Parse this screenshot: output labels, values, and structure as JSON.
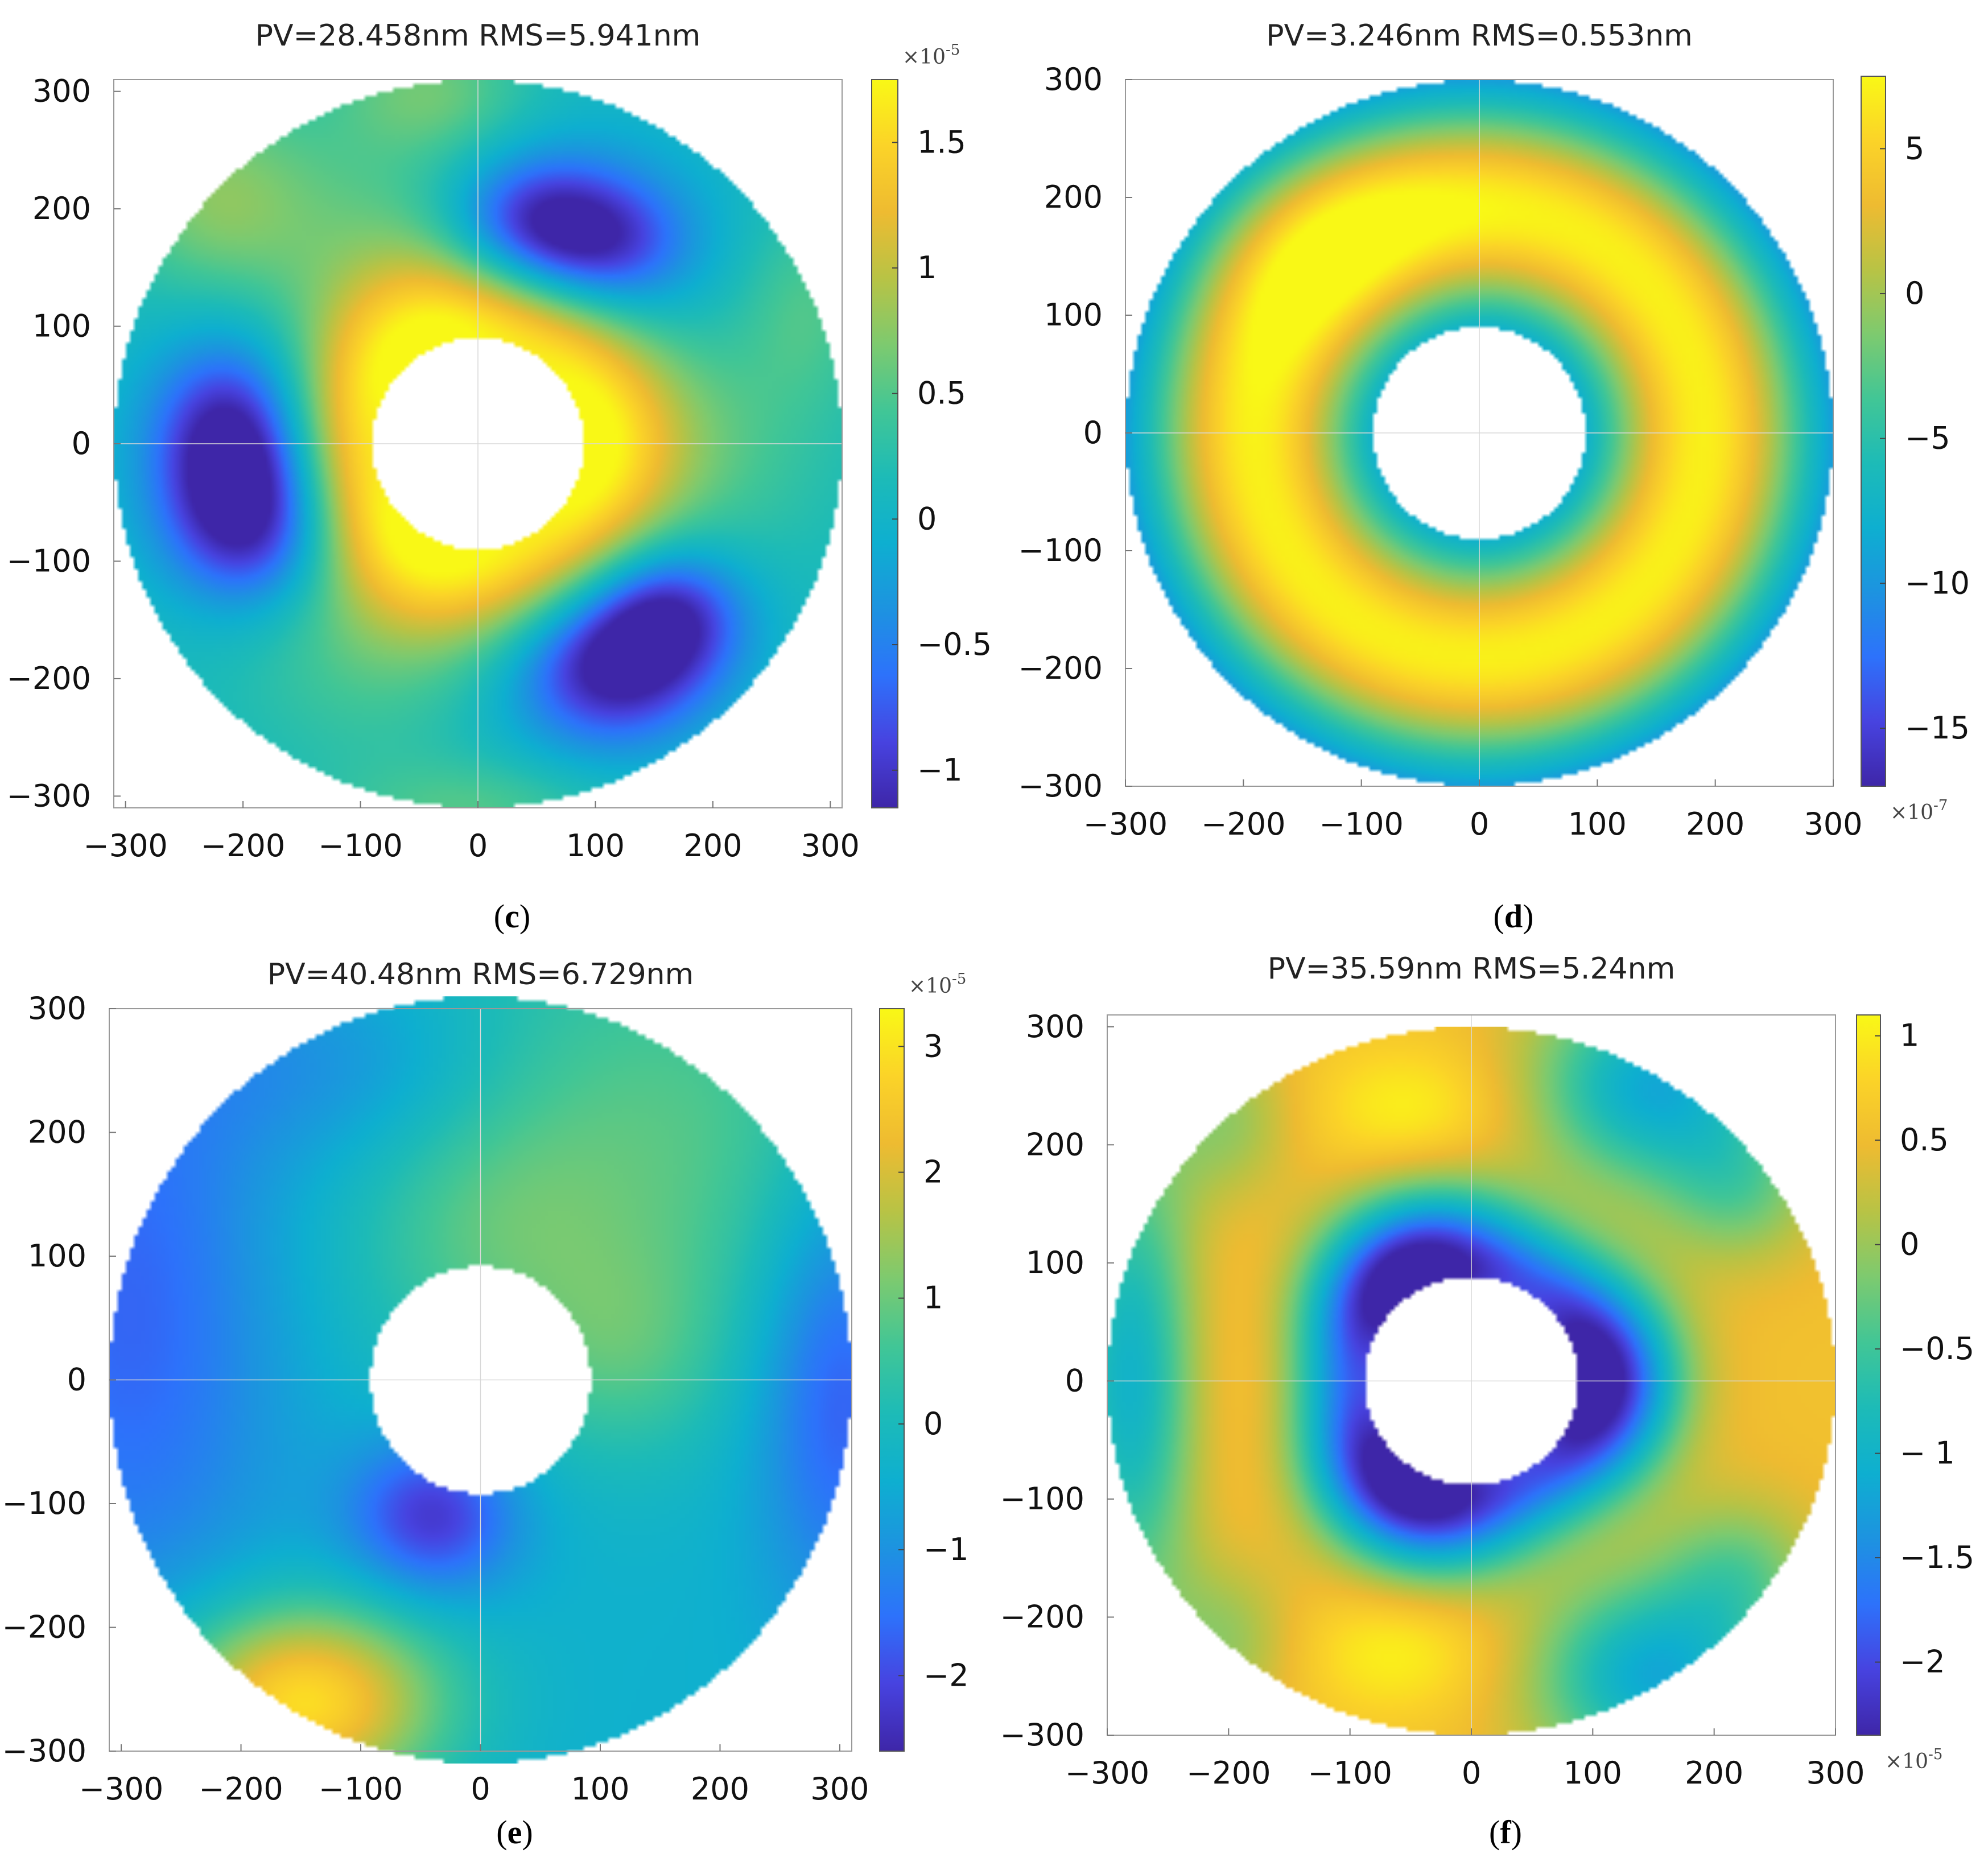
{
  "colors": {
    "parula": [
      "#3e26a8",
      "#4743e0",
      "#2d72fb",
      "#1d93e0",
      "#0eafd0",
      "#1dbbb7",
      "#41c696",
      "#7dca6f",
      "#b8c345",
      "#eebb31",
      "#fbd328",
      "#f9f816"
    ],
    "axis": "#999999",
    "grid": "#d8d8d8"
  },
  "chart_data": [
    {
      "id": "c",
      "panel_label": "(c)",
      "panel_label_letter": "c",
      "type": "heatmap",
      "title": "PV=28.458nm RMS=5.941nm",
      "xlim": [
        -310,
        310
      ],
      "ylim": [
        -310,
        310
      ],
      "xticks": [
        -300,
        -200,
        -100,
        0,
        100,
        200,
        300
      ],
      "yticks": [
        300,
        200,
        100,
        0,
        -100,
        -200,
        -300
      ],
      "xtick_labels": [
        "−300",
        "−200",
        "−100",
        "0",
        "100",
        "200",
        "300"
      ],
      "ytick_labels": [
        "300",
        "200",
        "100",
        "0",
        "−100",
        "−200",
        "−300"
      ],
      "aperture": {
        "outer_radius": 310,
        "inner_radius": 90
      },
      "colorbar": {
        "min": -1.15,
        "max": 1.75,
        "ticks": [
          1.5,
          1,
          0.5,
          0,
          -0.5,
          -1
        ],
        "tick_labels": [
          "1.5",
          "1",
          "0.5",
          "0",
          "−0.5",
          "−1"
        ],
        "multiplier": "×10",
        "exponent": "-5",
        "multiplier_position": "top"
      },
      "field": {
        "base": 0.1,
        "radial": [
          1.7,
          90,
          55
        ],
        "angular": [
          {
            "order": 3,
            "amp": -0.35,
            "phase": 60,
            "r0": 200,
            "sigma": 70
          }
        ],
        "blobs": [
          [
            45,
            185,
            -1.0,
            50,
            40
          ],
          [
            110,
            170,
            -0.75,
            50,
            40
          ],
          [
            -210,
            5,
            -1.05,
            45,
            55
          ],
          [
            -190,
            -70,
            -1.05,
            50,
            50
          ],
          [
            115,
            -190,
            -1.05,
            55,
            45
          ],
          [
            165,
            -145,
            -0.95,
            45,
            40
          ],
          [
            -225,
            210,
            0.6,
            60,
            60
          ],
          [
            -40,
            300,
            0.5,
            60,
            40
          ],
          [
            280,
            120,
            0.35,
            40,
            60
          ],
          [
            0,
            -310,
            0.4,
            80,
            30
          ]
        ]
      }
    },
    {
      "id": "d",
      "panel_label": "(d)",
      "panel_label_letter": "d",
      "type": "heatmap",
      "title": "PV=3.246nm RMS=0.553nm",
      "xlim": [
        -300,
        300
      ],
      "ylim": [
        -300,
        300
      ],
      "xticks": [
        -300,
        -200,
        -100,
        0,
        100,
        200,
        300
      ],
      "yticks": [
        300,
        200,
        100,
        0,
        -100,
        -200,
        -300
      ],
      "xtick_labels": [
        "−300",
        "−200",
        "−100",
        "0",
        "100",
        "200",
        "300"
      ],
      "ytick_labels": [
        "300",
        "200",
        "100",
        "0",
        "−100",
        "−200",
        "−300"
      ],
      "aperture": {
        "outer_radius": 300,
        "inner_radius": 90
      },
      "colorbar": {
        "min": -17,
        "max": 7.5,
        "ticks": [
          5,
          0,
          -5,
          -10,
          -15
        ],
        "tick_labels": [
          "5",
          "0",
          "−5",
          "−10",
          "−15"
        ],
        "multiplier": "×10",
        "exponent": "-7",
        "multiplier_position": "bottom"
      },
      "field": {
        "base": -17,
        "radial": [
          24,
          190,
          72
        ],
        "angular": [],
        "blobs": [
          [
            -150,
            170,
            3.5,
            80,
            70
          ]
        ]
      }
    },
    {
      "id": "e",
      "panel_label": "(e)",
      "panel_label_letter": "e",
      "type": "heatmap",
      "title": "PV=40.48nm RMS=6.729nm",
      "xlim": [
        -310,
        310
      ],
      "ylim": [
        -300,
        300
      ],
      "xticks": [
        -300,
        -200,
        -100,
        0,
        100,
        200,
        300
      ],
      "yticks": [
        300,
        200,
        100,
        0,
        -100,
        -200,
        -300
      ],
      "xtick_labels": [
        "−300",
        "−200",
        "−100",
        "0",
        "100",
        "200",
        "300"
      ],
      "ytick_labels": [
        "300",
        "200",
        "100",
        "0",
        "−100",
        "−200",
        "−300"
      ],
      "aperture": {
        "outer_radius": 310,
        "inner_radius": 92
      },
      "colorbar": {
        "min": -2.6,
        "max": 3.3,
        "ticks": [
          3,
          2,
          1,
          0,
          -1,
          -2
        ],
        "tick_labels": [
          "3",
          "2",
          "1",
          "0",
          "−1",
          "−2"
        ],
        "multiplier": "×10",
        "exponent": "-5",
        "multiplier_position": "top"
      },
      "field": {
        "base": -0.4,
        "radial": [
          0,
          100,
          50
        ],
        "angular": [],
        "blobs": [
          [
            130,
            200,
            1.2,
            170,
            140
          ],
          [
            10,
            110,
            0.6,
            80,
            80
          ],
          [
            120,
            20,
            0.7,
            60,
            60
          ],
          [
            -150,
            -260,
            3.4,
            80,
            55
          ],
          [
            -40,
            -110,
            -1.9,
            50,
            45
          ],
          [
            -290,
            60,
            -1.3,
            90,
            200
          ],
          [
            300,
            0,
            -1.5,
            50,
            130
          ],
          [
            -100,
            250,
            -0.8,
            100,
            60
          ]
        ]
      }
    },
    {
      "id": "f",
      "panel_label": "(f)",
      "panel_label_letter": "f",
      "type": "heatmap",
      "title": "PV=35.59nm RMS=5.24nm",
      "xlim": [
        -300,
        300
      ],
      "ylim": [
        -300,
        310
      ],
      "xticks": [
        -300,
        -200,
        -100,
        0,
        100,
        200,
        300
      ],
      "yticks": [
        300,
        200,
        100,
        0,
        -100,
        -200,
        -300
      ],
      "xtick_labels": [
        "−300",
        "−200",
        "−100",
        "0",
        "100",
        "200",
        "300"
      ],
      "ytick_labels": [
        "300",
        "200",
        "100",
        "0",
        "−100",
        "−200",
        "−300"
      ],
      "aperture": {
        "outer_radius": 300,
        "inner_radius": 88
      },
      "colorbar": {
        "min": -2.35,
        "max": 1.1,
        "ticks": [
          1,
          0.5,
          0,
          -0.5,
          -1,
          -1.5,
          -2
        ],
        "tick_labels": [
          "1",
          "0.5",
          "0",
          "−0.5",
          "− 1",
          "−1.5",
          "−2"
        ],
        "multiplier": "×10",
        "exponent": "-5",
        "multiplier_position": "bottom"
      },
      "field": {
        "base": 0.55,
        "radial": [
          -2.9,
          95,
          45
        ],
        "angular": [
          {
            "order": 3,
            "amp": -0.6,
            "phase": 0,
            "r0": 130,
            "sigma": 40
          }
        ],
        "blobs": [
          [
            -280,
            0,
            -1.6,
            40,
            140
          ],
          [
            -50,
            230,
            0.5,
            60,
            40
          ],
          [
            -60,
            -230,
            0.5,
            60,
            40
          ],
          [
            150,
            250,
            -1.7,
            70,
            60
          ],
          [
            150,
            -250,
            -1.7,
            70,
            60
          ],
          [
            220,
            160,
            -0.7,
            45,
            45
          ],
          [
            220,
            -160,
            -0.7,
            45,
            45
          ],
          [
            -200,
            220,
            -0.6,
            40,
            50
          ],
          [
            -200,
            -220,
            -0.6,
            40,
            50
          ],
          [
            -200,
            0,
            0.2,
            50,
            120
          ]
        ]
      }
    }
  ]
}
